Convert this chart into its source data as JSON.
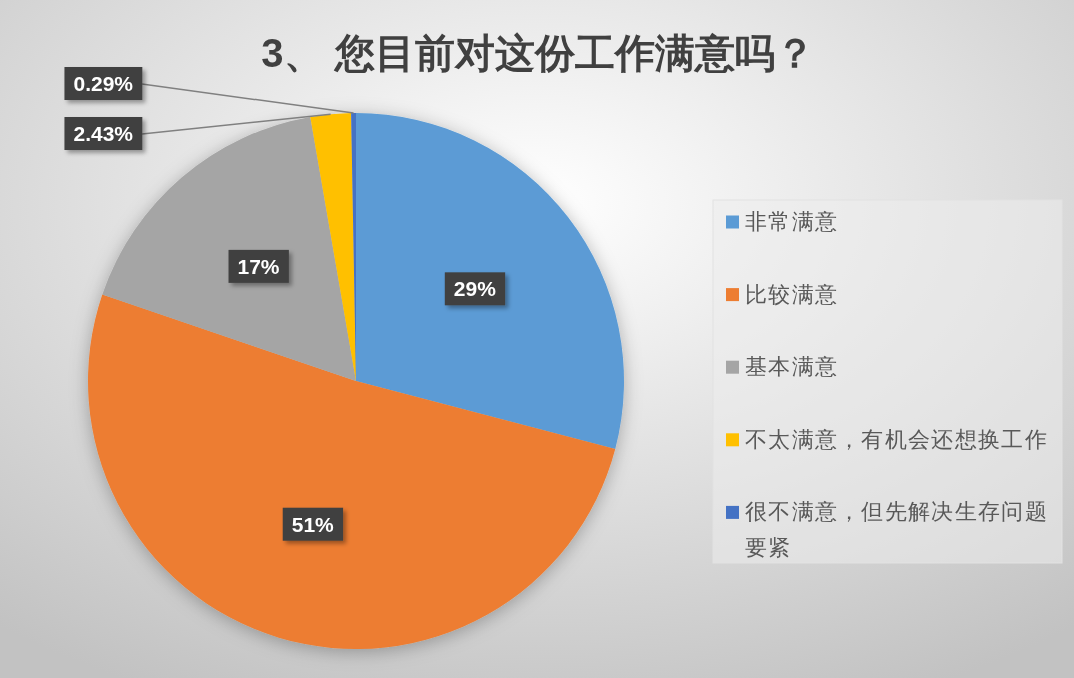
{
  "chart_data": {
    "type": "pie",
    "title": "3、 您目前对这份工作满意吗？",
    "categories": [
      "非常满意",
      "比较满意",
      "基本满意",
      "不太满意，有机会还想换工作",
      "很不满意，但先解决生存问题要紧"
    ],
    "values": [
      29,
      51,
      17,
      2.43,
      0.29
    ],
    "colors": [
      "#5b9bd5",
      "#ed7d31",
      "#a5a5a5",
      "#ffc000",
      "#4472c4"
    ],
    "value_labels": [
      "29%",
      "51%",
      "17%",
      "2.43%",
      "0.29%"
    ],
    "legend": "right"
  }
}
